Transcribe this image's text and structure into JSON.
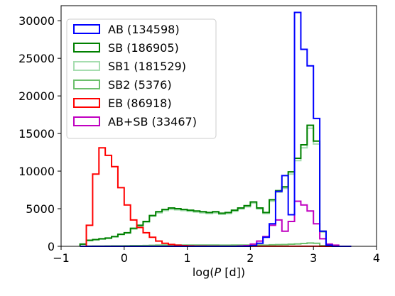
{
  "chart_data": {
    "type": "histogram-step",
    "xlabel_prefix": "log(",
    "xlabel_var": "P",
    "xlabel_suffix": " [d])",
    "ylabel": "",
    "xlim": [
      -1,
      4
    ],
    "ylim": [
      0,
      32000
    ],
    "x_ticks": [
      -1,
      0,
      1,
      2,
      3,
      4
    ],
    "y_ticks": [
      0,
      5000,
      10000,
      15000,
      20000,
      25000,
      30000
    ],
    "legend_position": "upper-left",
    "bin_edges": [
      -0.7,
      -0.6,
      -0.5,
      -0.4,
      -0.3,
      -0.2,
      -0.1,
      0.0,
      0.1,
      0.2,
      0.3,
      0.4,
      0.5,
      0.6,
      0.7,
      0.8,
      0.9,
      1.0,
      1.1,
      1.2,
      1.3,
      1.4,
      1.5,
      1.6,
      1.7,
      1.8,
      1.9,
      2.0,
      2.1,
      2.2,
      2.3,
      2.4,
      2.5,
      2.6,
      2.7,
      2.8,
      2.9,
      3.0,
      3.1,
      3.2,
      3.3,
      3.4,
      3.5,
      3.6
    ],
    "series": [
      {
        "name": "AB (134598)",
        "color": "#0000ff",
        "values": [
          0,
          0,
          0,
          0,
          0,
          0,
          0,
          0,
          0,
          0,
          0,
          0,
          0,
          0,
          0,
          0,
          0,
          0,
          0,
          0,
          0,
          0,
          0,
          0,
          0,
          0,
          0,
          100,
          400,
          1200,
          3000,
          7300,
          9400,
          4200,
          31100,
          26200,
          24000,
          17000,
          2000,
          150,
          0,
          0,
          0
        ]
      },
      {
        "name": "SB (186905)",
        "color": "#008000",
        "values": [
          300,
          800,
          900,
          1000,
          1100,
          1300,
          1600,
          1800,
          2400,
          2800,
          3300,
          4100,
          4600,
          4900,
          5100,
          5000,
          4900,
          4800,
          4700,
          4600,
          4500,
          4600,
          4400,
          4500,
          4800,
          5100,
          5400,
          5900,
          5100,
          4500,
          6200,
          7400,
          7900,
          9900,
          11700,
          13500,
          16100,
          14000,
          2000,
          150,
          0,
          0,
          0
        ]
      },
      {
        "name": "SB1 (181529)",
        "color": "#a6ddb0",
        "values": [
          280,
          750,
          860,
          960,
          1050,
          1250,
          1550,
          1750,
          2300,
          2700,
          3200,
          4000,
          4450,
          4750,
          4900,
          4850,
          4750,
          4650,
          4550,
          4450,
          4350,
          4450,
          4250,
          4350,
          4650,
          4950,
          5250,
          5750,
          4950,
          4350,
          6000,
          7200,
          7700,
          9600,
          11400,
          13100,
          15700,
          13600,
          1900,
          140,
          0,
          0,
          0
        ]
      },
      {
        "name": "SB2 (5376)",
        "color": "#6cc06c",
        "values": [
          10,
          20,
          30,
          40,
          50,
          60,
          60,
          70,
          90,
          100,
          110,
          130,
          150,
          160,
          170,
          170,
          170,
          170,
          160,
          160,
          160,
          160,
          150,
          150,
          160,
          160,
          170,
          180,
          160,
          150,
          200,
          220,
          230,
          280,
          320,
          380,
          440,
          400,
          90,
          10,
          0,
          0,
          0
        ]
      },
      {
        "name": "EB (86918)",
        "color": "#ff0000",
        "values": [
          0,
          2800,
          9600,
          13100,
          12100,
          10600,
          7800,
          5500,
          3500,
          2500,
          1800,
          1200,
          700,
          400,
          250,
          150,
          100,
          60,
          40,
          30,
          20,
          20,
          10,
          10,
          10,
          10,
          10,
          10,
          10,
          10,
          10,
          10,
          10,
          10,
          10,
          10,
          10,
          10,
          0,
          0,
          0,
          0,
          0
        ]
      },
      {
        "name": "AB+SB (33467)",
        "color": "#c000c0",
        "values": [
          0,
          0,
          0,
          0,
          0,
          0,
          0,
          0,
          0,
          0,
          0,
          0,
          0,
          0,
          0,
          0,
          0,
          0,
          0,
          0,
          0,
          0,
          0,
          0,
          0,
          50,
          100,
          300,
          700,
          1300,
          2800,
          3500,
          2000,
          3300,
          6000,
          5500,
          4700,
          3000,
          1000,
          300,
          150,
          0,
          0
        ]
      }
    ]
  }
}
